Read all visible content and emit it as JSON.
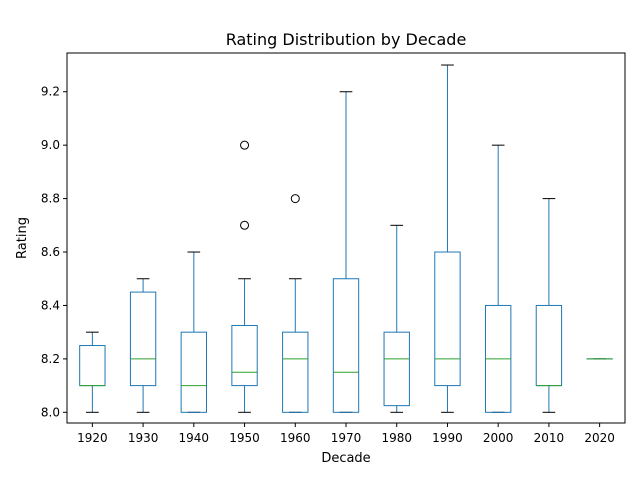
{
  "chart_data": {
    "type": "box",
    "title": "Rating Distribution by Decade",
    "xlabel": "Decade",
    "ylabel": "Rating",
    "ylim": [
      7.96,
      9.345
    ],
    "yticks": [
      8.0,
      8.2,
      8.4,
      8.6,
      8.8,
      9.0,
      9.2
    ],
    "ytick_labels": [
      "8.0",
      "8.2",
      "8.4",
      "8.6",
      "8.8",
      "9.0",
      "9.2"
    ],
    "grid": false,
    "colors": {
      "box": "#1f77b4",
      "median": "#2ca02c",
      "whisker_cap": "#000000",
      "outlier": "#000000"
    },
    "categories": [
      "1920",
      "1930",
      "1940",
      "1950",
      "1960",
      "1970",
      "1980",
      "1990",
      "2000",
      "2010",
      "2020"
    ],
    "boxes": [
      {
        "category": "1920",
        "whisker_low": 8.0,
        "q1": 8.1,
        "median": 8.1,
        "q3": 8.25,
        "whisker_high": 8.3,
        "outliers": []
      },
      {
        "category": "1930",
        "whisker_low": 8.0,
        "q1": 8.1,
        "median": 8.2,
        "q3": 8.45,
        "whisker_high": 8.5,
        "outliers": []
      },
      {
        "category": "1940",
        "whisker_low": 8.0,
        "q1": 8.0,
        "median": 8.1,
        "q3": 8.3,
        "whisker_high": 8.6,
        "outliers": []
      },
      {
        "category": "1950",
        "whisker_low": 8.0,
        "q1": 8.1,
        "median": 8.15,
        "q3": 8.325,
        "whisker_high": 8.5,
        "outliers": [
          8.7,
          9.0
        ]
      },
      {
        "category": "1960",
        "whisker_low": 8.0,
        "q1": 8.0,
        "median": 8.2,
        "q3": 8.3,
        "whisker_high": 8.5,
        "outliers": [
          8.8
        ]
      },
      {
        "category": "1970",
        "whisker_low": 8.0,
        "q1": 8.0,
        "median": 8.15,
        "q3": 8.5,
        "whisker_high": 9.2,
        "outliers": []
      },
      {
        "category": "1980",
        "whisker_low": 8.0,
        "q1": 8.025,
        "median": 8.2,
        "q3": 8.3,
        "whisker_high": 8.7,
        "outliers": []
      },
      {
        "category": "1990",
        "whisker_low": 8.0,
        "q1": 8.1,
        "median": 8.2,
        "q3": 8.6,
        "whisker_high": 9.3,
        "outliers": []
      },
      {
        "category": "2000",
        "whisker_low": 8.0,
        "q1": 8.0,
        "median": 8.2,
        "q3": 8.4,
        "whisker_high": 9.0,
        "outliers": []
      },
      {
        "category": "2010",
        "whisker_low": 8.0,
        "q1": 8.1,
        "median": 8.1,
        "q3": 8.4,
        "whisker_high": 8.8,
        "outliers": []
      },
      {
        "category": "2020",
        "whisker_low": 8.2,
        "q1": 8.2,
        "median": 8.2,
        "q3": 8.2,
        "whisker_high": 8.2,
        "outliers": []
      }
    ]
  }
}
